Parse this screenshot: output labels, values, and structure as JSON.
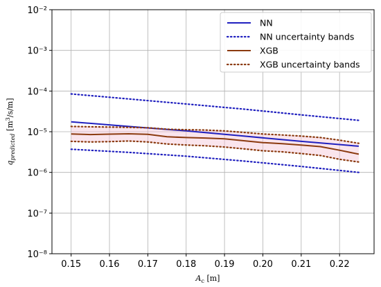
{
  "chart_data": {
    "type": "line",
    "xlabel": "A_c [m]",
    "ylabel": "q_predicted [m^3/s/m]",
    "xlim": [
      0.145,
      0.229
    ],
    "ylim_log10": [
      -8,
      -2
    ],
    "yscale": "log",
    "grid": true,
    "legend_position": "top-right",
    "x_ticks": [
      0.15,
      0.16,
      0.17,
      0.18,
      0.19,
      0.2,
      0.21,
      0.22
    ],
    "x_tick_labels": [
      "0.15",
      "0.16",
      "0.17",
      "0.18",
      "0.19",
      "0.20",
      "0.21",
      "0.22"
    ],
    "y_ticks_log10": [
      -8,
      -7,
      -6,
      -5,
      -4,
      -3,
      -2
    ],
    "y_tick_labels": [
      "10⁻⁸",
      "10⁻⁷",
      "10⁻⁶",
      "10⁻⁵",
      "10⁻⁴",
      "10⁻³",
      "10⁻²"
    ],
    "series": [
      {
        "name": "NN",
        "style": "solid",
        "color": "#1f1fbf",
        "x": [
          0.15,
          0.165,
          0.18,
          0.195,
          0.21,
          0.225
        ],
        "y": [
          1.75e-05,
          1.35e-05,
          1.05e-05,
          7.8e-06,
          5.8e-06,
          4.4e-06
        ]
      },
      {
        "name": "NN   uncertainty bands",
        "style": "dotted",
        "color": "#1f1fbf",
        "lines": [
          {
            "x": [
              0.15,
              0.165,
              0.18,
              0.195,
              0.21,
              0.225
            ],
            "y": [
              8.5e-05,
              6.4e-05,
              4.8e-05,
              3.6e-05,
              2.6e-05,
              1.9e-05
            ]
          },
          {
            "x": [
              0.15,
              0.165,
              0.18,
              0.195,
              0.21,
              0.225
            ],
            "y": [
              3.7e-06,
              3.1e-06,
              2.5e-06,
              1.9e-06,
              1.4e-06,
              1e-06
            ]
          }
        ]
      },
      {
        "name": "XGB",
        "style": "solid",
        "color": "#8b3a0f",
        "x": [
          0.15,
          0.155,
          0.16,
          0.165,
          0.17,
          0.175,
          0.18,
          0.185,
          0.19,
          0.195,
          0.2,
          0.205,
          0.21,
          0.215,
          0.22,
          0.225
        ],
        "y": [
          8.8e-06,
          8.5e-06,
          8.7e-06,
          8.9e-06,
          8.6e-06,
          7.5e-06,
          7.2e-06,
          7e-06,
          6.7e-06,
          6e-06,
          5.4e-06,
          5.1e-06,
          4.7e-06,
          4.3e-06,
          3.5e-06,
          2.8e-06
        ]
      },
      {
        "name": "XGB uncertainty bands",
        "style": "dotted",
        "color": "#8b3a0f",
        "lines": [
          {
            "x": [
              0.15,
              0.155,
              0.16,
              0.165,
              0.17,
              0.175,
              0.18,
              0.185,
              0.19,
              0.195,
              0.2,
              0.205,
              0.21,
              0.215,
              0.22,
              0.225
            ],
            "y": [
              1.35e-05,
              1.32e-05,
              1.3e-05,
              1.28e-05,
              1.25e-05,
              1.15e-05,
              1.12e-05,
              1.1e-05,
              1.05e-05,
              9.6e-06,
              8.8e-06,
              8.3e-06,
              7.8e-06,
              7.2e-06,
              6.2e-06,
              5.2e-06
            ]
          },
          {
            "x": [
              0.15,
              0.155,
              0.16,
              0.165,
              0.17,
              0.175,
              0.18,
              0.185,
              0.19,
              0.195,
              0.2,
              0.205,
              0.21,
              0.215,
              0.22,
              0.225
            ],
            "y": [
              5.8e-06,
              5.6e-06,
              5.7e-06,
              5.9e-06,
              5.6e-06,
              5e-06,
              4.7e-06,
              4.5e-06,
              4.2e-06,
              3.8e-06,
              3.4e-06,
              3.2e-06,
              2.9e-06,
              2.6e-06,
              2.1e-06,
              1.8e-06
            ]
          }
        ]
      }
    ],
    "band_fill_color": "#f5c6d6",
    "legend": [
      {
        "label": "NN",
        "style": "solid",
        "color": "#1f1fbf"
      },
      {
        "label": "NN   uncertainty bands",
        "style": "dotted",
        "color": "#1f1fbf"
      },
      {
        "label": "XGB",
        "style": "solid",
        "color": "#8b3a0f"
      },
      {
        "label": "XGB uncertainty bands",
        "style": "dotted",
        "color": "#8b3a0f"
      }
    ]
  }
}
